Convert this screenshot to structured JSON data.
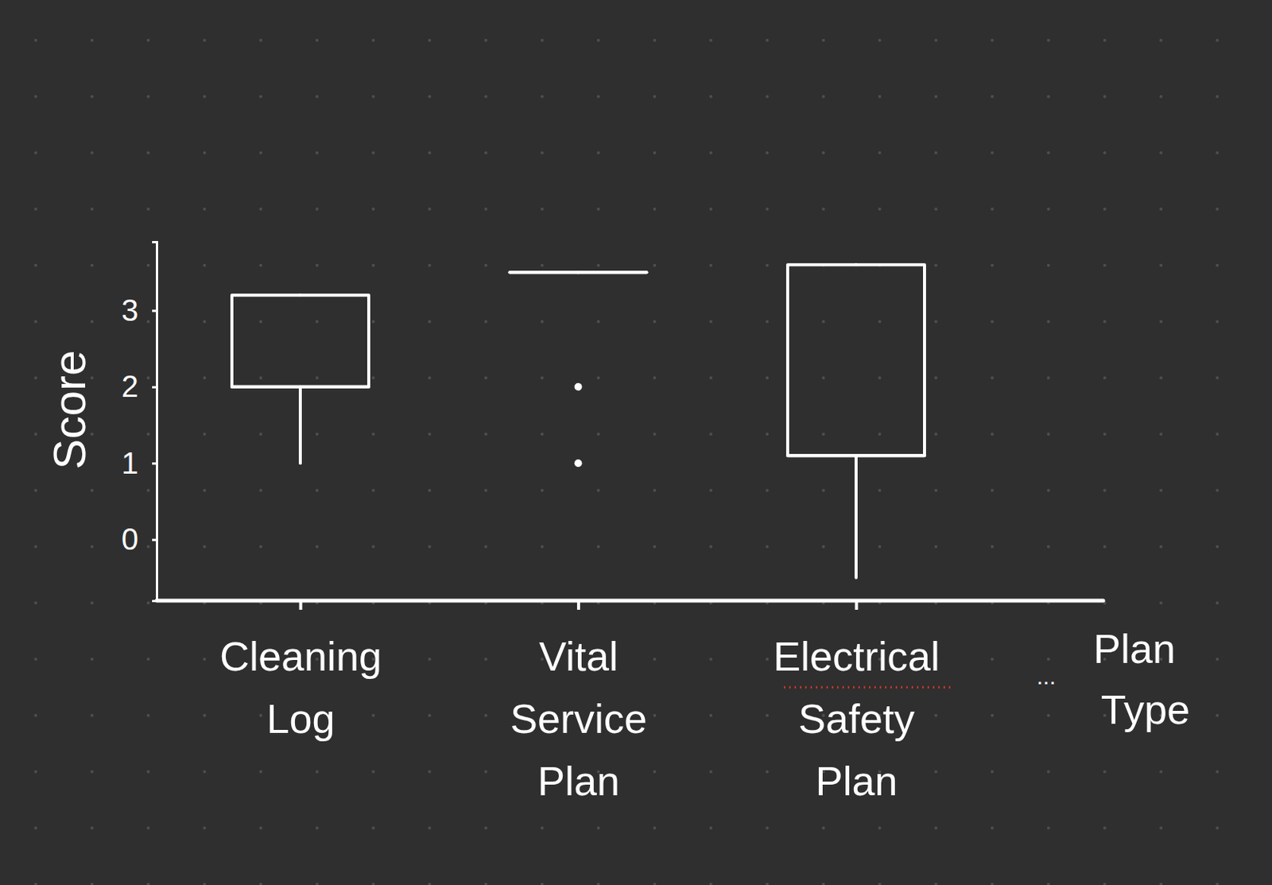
{
  "chart_data": {
    "type": "box",
    "categories": [
      "Cleaning Log",
      "Vital Service Plan",
      "Electrical Safety Plan"
    ],
    "min": [
      1,
      3.5,
      -0.5
    ],
    "q1": [
      2,
      3.5,
      1.1
    ],
    "median": [
      2,
      3.5,
      1.1
    ],
    "q3": [
      3.2,
      3.5,
      3.6
    ],
    "max": [
      3.2,
      3.5,
      3.6
    ],
    "outliers": [
      [],
      [
        2,
        1
      ],
      []
    ],
    "color": "#ffffff",
    "y_label": "Score",
    "x_label": "Plan Type",
    "annotations": [
      "..."
    ],
    "ylim": [
      -0.8,
      3.9
    ],
    "yticks": [
      0,
      1,
      2,
      3
    ]
  }
}
